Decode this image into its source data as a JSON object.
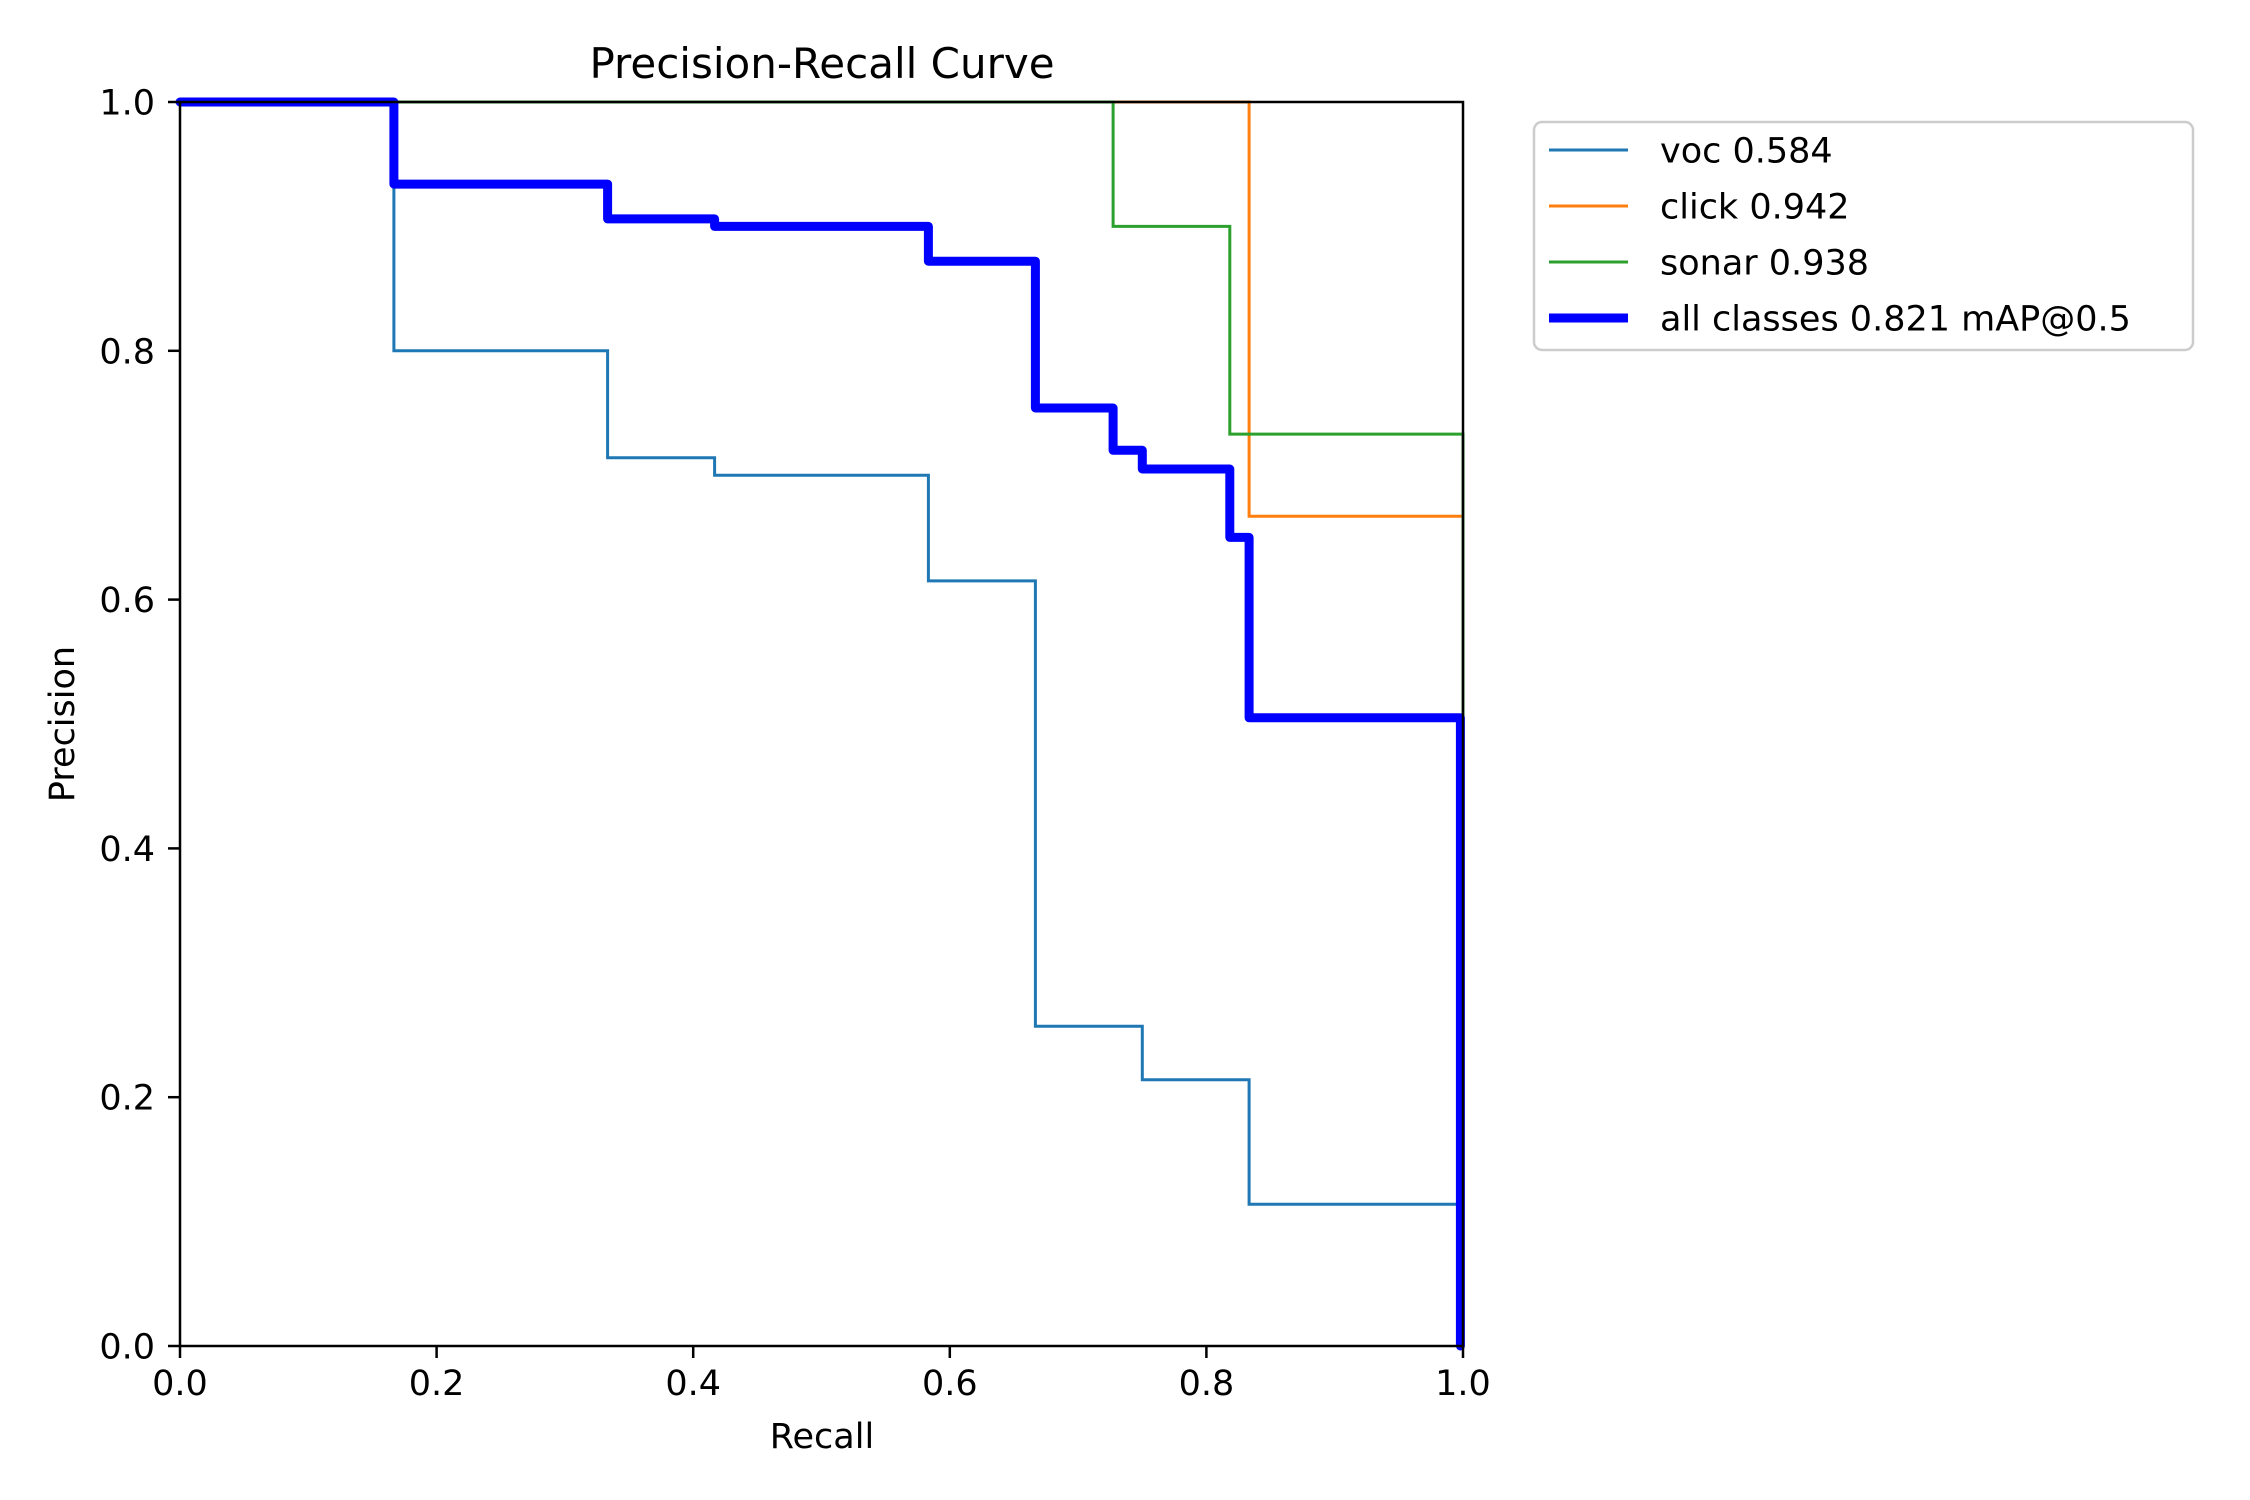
{
  "chart_data": {
    "type": "line",
    "title": "Precision-Recall Curve",
    "xlabel": "Recall",
    "ylabel": "Precision",
    "xlim": [
      0,
      1
    ],
    "ylim": [
      0,
      1
    ],
    "xticks": [
      0.0,
      0.2,
      0.4,
      0.6,
      0.8,
      1.0
    ],
    "xtick_labels": [
      "0.0",
      "0.2",
      "0.4",
      "0.6",
      "0.8",
      "1.0"
    ],
    "yticks": [
      0.0,
      0.2,
      0.4,
      0.6,
      0.8,
      1.0
    ],
    "ytick_labels": [
      "0.0",
      "0.2",
      "0.4",
      "0.6",
      "0.8",
      "1.0"
    ],
    "grid": false,
    "legend_position": "outside-top-right",
    "series": [
      {
        "name": "voc 0.584",
        "color": "#1f77b4",
        "emphasis": false,
        "points": [
          [
            0,
            1
          ],
          [
            0.1667,
            1
          ],
          [
            0.1667,
            0.8
          ],
          [
            0.3333,
            0.8
          ],
          [
            0.3333,
            0.714
          ],
          [
            0.4167,
            0.714
          ],
          [
            0.4167,
            0.7
          ],
          [
            0.5833,
            0.7
          ],
          [
            0.5833,
            0.615
          ],
          [
            0.6667,
            0.615
          ],
          [
            0.6667,
            0.257
          ],
          [
            0.75,
            0.257
          ],
          [
            0.75,
            0.214
          ],
          [
            0.8333,
            0.214
          ],
          [
            0.8333,
            0.114
          ],
          [
            0.998,
            0.114
          ],
          [
            0.998,
            0
          ]
        ]
      },
      {
        "name": "click 0.942",
        "color": "#ff7f0e",
        "emphasis": false,
        "points": [
          [
            0,
            1
          ],
          [
            0.8333,
            1
          ],
          [
            0.8333,
            0.667
          ],
          [
            1.0,
            0.667
          ],
          [
            1.0,
            0
          ]
        ]
      },
      {
        "name": "sonar 0.938",
        "color": "#2ca02c",
        "emphasis": false,
        "points": [
          [
            0,
            1
          ],
          [
            0.7273,
            1
          ],
          [
            0.7273,
            0.9
          ],
          [
            0.8182,
            0.9
          ],
          [
            0.8182,
            0.733
          ],
          [
            1.0,
            0.733
          ],
          [
            1.0,
            0
          ]
        ]
      },
      {
        "name": "all classes 0.821 mAP@0.5",
        "color": "#0000ff",
        "emphasis": true,
        "points": [
          [
            0,
            1
          ],
          [
            0.1667,
            1
          ],
          [
            0.1667,
            0.934
          ],
          [
            0.3333,
            0.934
          ],
          [
            0.3333,
            0.906
          ],
          [
            0.4167,
            0.906
          ],
          [
            0.4167,
            0.9
          ],
          [
            0.5833,
            0.9
          ],
          [
            0.5833,
            0.872
          ],
          [
            0.6667,
            0.872
          ],
          [
            0.6667,
            0.754
          ],
          [
            0.7273,
            0.754
          ],
          [
            0.7273,
            0.72
          ],
          [
            0.75,
            0.72
          ],
          [
            0.75,
            0.705
          ],
          [
            0.8182,
            0.705
          ],
          [
            0.8182,
            0.65
          ],
          [
            0.8333,
            0.65
          ],
          [
            0.8333,
            0.505
          ],
          [
            0.998,
            0.505
          ],
          [
            0.998,
            0
          ]
        ]
      }
    ]
  }
}
